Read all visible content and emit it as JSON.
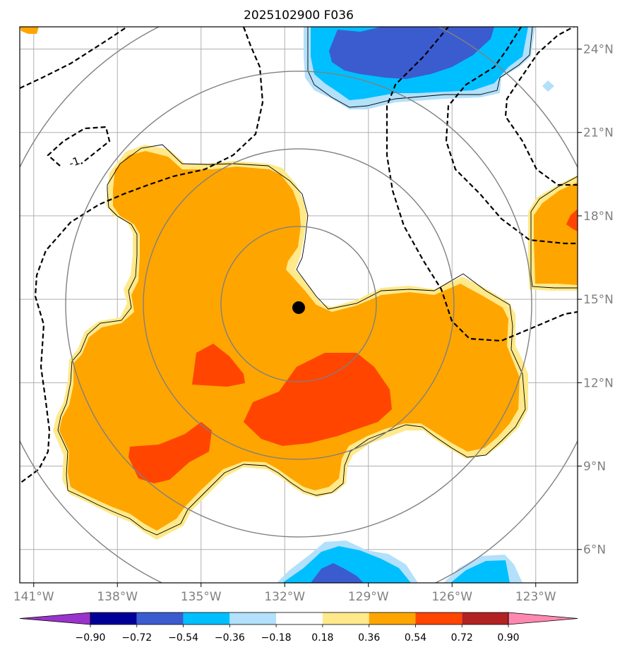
{
  "title": "2025102900 F036",
  "map": {
    "lon_range": [
      -141.5,
      -121.5
    ],
    "lat_range": [
      4.8,
      24.8
    ],
    "lon_ticks": [
      {
        "value": -141,
        "label": "141°W"
      },
      {
        "value": -138,
        "label": "138°W"
      },
      {
        "value": -135,
        "label": "135°W"
      },
      {
        "value": -132,
        "label": "132°W"
      },
      {
        "value": -129,
        "label": "129°W"
      },
      {
        "value": -126,
        "label": "126°W"
      },
      {
        "value": -123,
        "label": "123°W"
      }
    ],
    "lat_ticks": [
      {
        "value": 24,
        "label": "24°N"
      },
      {
        "value": 21,
        "label": "21°N"
      },
      {
        "value": 18,
        "label": "18°N"
      },
      {
        "value": 15,
        "label": "15°N"
      },
      {
        "value": 12,
        "label": "12°N"
      },
      {
        "value": 9,
        "label": "9°N"
      },
      {
        "value": 6,
        "label": "6°N"
      }
    ],
    "grid": true,
    "center_marker": {
      "lon": -131.5,
      "lat": 14.7
    },
    "range_rings": 4,
    "contour_label": "-1"
  },
  "colorbar": {
    "levels": [
      "−0.90",
      "−0.72",
      "−0.54",
      "−0.36",
      "−0.18",
      "0.18",
      "0.36",
      "0.54",
      "0.72",
      "0.90"
    ],
    "colors": [
      "#9933cc",
      "#000099",
      "#3b5ccf",
      "#00bfff",
      "#b3e0fb",
      "#ffffff",
      "#ffe98a",
      "#ffa500",
      "#ff4500",
      "#b22222",
      "#ff88b0"
    ]
  }
}
